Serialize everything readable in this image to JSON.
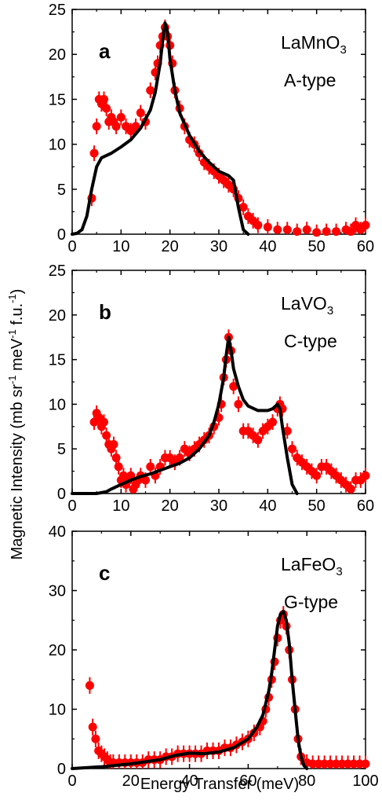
{
  "page": {
    "ylabel": "Magnetic Intensity (mb sr",
    "ylabel_sup1": "-1",
    "ylabel_mid": " meV",
    "ylabel_sup2": "-1",
    "ylabel_end": " f.u.",
    "ylabel_sup3": "-1",
    "ylabel_close": ")",
    "xlabel": "Energy Transfer (meV)"
  },
  "chart_data": [
    {
      "type": "scatter",
      "panel_label": "a",
      "compound_main": "LaMnO",
      "compound_sub": "3",
      "order_type": "A-type",
      "xlim": [
        0,
        60
      ],
      "ylim": [
        0,
        25
      ],
      "xticks": [
        0,
        10,
        20,
        30,
        40,
        50,
        60
      ],
      "yticks": [
        0,
        5,
        10,
        15,
        20,
        25
      ],
      "colors": {
        "points": "#ff0000",
        "fit": "#000000"
      },
      "series": [
        {
          "kind": "points",
          "x": [
            4,
            4.5,
            5,
            5.5,
            6,
            6.5,
            7,
            7.5,
            8,
            8.5,
            9,
            10,
            11,
            12,
            13,
            14,
            15,
            16,
            17,
            17.5,
            18,
            18.5,
            19,
            19.5,
            20,
            20.5,
            21,
            22,
            23,
            24,
            25,
            26,
            27,
            28,
            29,
            30,
            31,
            32,
            33,
            34,
            35,
            36,
            37,
            38,
            40,
            42,
            44,
            46,
            48,
            50,
            52,
            54,
            56,
            57,
            58,
            59,
            60
          ],
          "y": [
            4,
            9,
            12,
            15,
            14.5,
            15,
            14,
            12.5,
            13,
            12.5,
            12,
            13,
            12,
            11.5,
            12,
            13.5,
            12.5,
            16,
            18,
            19,
            21,
            22,
            23,
            22,
            21,
            19,
            16,
            14,
            12,
            10.5,
            10,
            9,
            8,
            7.5,
            7,
            6.5,
            6,
            5.5,
            5,
            4,
            3,
            2,
            1.5,
            1,
            0.8,
            0.5,
            0.5,
            0.3,
            0.5,
            0.2,
            0.3,
            0.3,
            0.5,
            0.3,
            1,
            0.5,
            1
          ]
        },
        {
          "kind": "fit",
          "x": [
            0,
            1,
            2,
            3,
            4,
            5,
            6,
            8,
            10,
            12,
            14,
            16,
            17,
            18,
            18.5,
            19,
            19.5,
            20,
            21,
            22,
            24,
            26,
            28,
            30,
            32,
            33,
            34,
            35,
            36
          ],
          "y": [
            0,
            0.1,
            0.5,
            2,
            5,
            7.5,
            8.5,
            9,
            9.7,
            10.5,
            11.8,
            13.8,
            15.8,
            19,
            21.5,
            23.5,
            22.5,
            19.5,
            16,
            13.5,
            11,
            9.2,
            8,
            7,
            6.5,
            6,
            3,
            0.5,
            0
          ]
        }
      ]
    },
    {
      "type": "scatter",
      "panel_label": "b",
      "compound_main": "LaVO",
      "compound_sub": "3",
      "order_type": "C-type",
      "xlim": [
        0,
        60
      ],
      "ylim": [
        0,
        25
      ],
      "xticks": [
        0,
        10,
        20,
        30,
        40,
        50,
        60
      ],
      "yticks": [
        0,
        5,
        10,
        15,
        20,
        25
      ],
      "colors": {
        "points": "#ff0000",
        "fit": "#000000"
      },
      "series": [
        {
          "kind": "points",
          "x": [
            4.5,
            5,
            5.5,
            6,
            6.5,
            7,
            7.5,
            8,
            8.5,
            9,
            9.5,
            10,
            10.5,
            11,
            11.5,
            12,
            12.5,
            13,
            13.5,
            14,
            15,
            16,
            17,
            18,
            19,
            20,
            21,
            22,
            23,
            24,
            25,
            26,
            27,
            28,
            29,
            30,
            30.5,
            31,
            31.5,
            32,
            32.5,
            33,
            34,
            35,
            36,
            37,
            38,
            39,
            40,
            41,
            42,
            42.5,
            43,
            44,
            45,
            46,
            47,
            48,
            49,
            50,
            51,
            52,
            53,
            54,
            55,
            56,
            57,
            58,
            59,
            60
          ],
          "y": [
            8,
            9,
            8.5,
            7.5,
            8,
            6.5,
            5.5,
            5,
            5.5,
            4,
            3,
            1.5,
            2,
            1,
            1.5,
            2,
            0.5,
            1,
            1.5,
            2,
            1.5,
            3,
            2,
            3,
            4,
            4,
            3.5,
            4,
            5,
            4.5,
            5,
            5.5,
            6,
            6.5,
            7.5,
            8.5,
            10,
            13,
            15,
            17.5,
            16,
            12,
            10,
            7,
            7,
            6.5,
            6,
            7,
            7.5,
            8,
            9.5,
            10,
            9.5,
            7,
            5,
            4,
            3.5,
            3,
            2.5,
            2,
            3,
            3,
            2.5,
            2,
            1.5,
            1,
            0.5,
            1.5,
            1.5,
            2
          ]
        },
        {
          "kind": "fit",
          "x": [
            0,
            5,
            7,
            8,
            10,
            12,
            14,
            16,
            18,
            20,
            22,
            24,
            26,
            28,
            29,
            30,
            31,
            31.5,
            32,
            32.5,
            33,
            34,
            35,
            36,
            38,
            40,
            41,
            42,
            42.5,
            43,
            44,
            45,
            46
          ],
          "y": [
            0,
            0,
            0.2,
            0.5,
            1,
            1.5,
            1.9,
            2.2,
            2.6,
            3,
            3.4,
            4,
            5,
            6.5,
            8,
            10,
            13,
            15.5,
            17.5,
            16,
            14,
            12,
            10.5,
            9.8,
            9.3,
            9.3,
            9.5,
            10,
            9.5,
            7.5,
            4,
            1,
            0
          ]
        }
      ]
    },
    {
      "type": "scatter",
      "panel_label": "c",
      "compound_main": "LaFeO",
      "compound_sub": "3",
      "order_type": "G-type",
      "xlim": [
        0,
        100
      ],
      "ylim": [
        0,
        40
      ],
      "xticks": [
        0,
        20,
        40,
        60,
        80,
        100
      ],
      "yticks": [
        0,
        10,
        20,
        30,
        40
      ],
      "colors": {
        "points": "#ff0000",
        "fit": "#000000"
      },
      "series": [
        {
          "kind": "points",
          "x": [
            6,
            7,
            8,
            9,
            10,
            11,
            12,
            13,
            14,
            16,
            18,
            20,
            22,
            24,
            26,
            28,
            30,
            32,
            34,
            36,
            38,
            40,
            42,
            44,
            46,
            48,
            50,
            52,
            54,
            56,
            58,
            60,
            62,
            64,
            65,
            66,
            67,
            68,
            69,
            70,
            71,
            72,
            73,
            74,
            75,
            76,
            77,
            78,
            80,
            82,
            84,
            86,
            88,
            90,
            92,
            94,
            96,
            98,
            100
          ],
          "y": [
            14,
            7,
            5,
            3,
            2.5,
            2,
            1.5,
            1,
            1,
            1,
            1,
            1,
            1,
            1,
            1.5,
            1.5,
            1.5,
            2,
            2,
            2.5,
            2.5,
            2.5,
            2.5,
            2.5,
            3,
            3,
            3,
            3.5,
            3.5,
            4,
            4.5,
            5,
            6,
            7,
            8,
            10,
            12,
            15,
            18,
            22,
            25,
            26,
            24,
            20,
            15,
            10,
            5,
            2,
            1,
            0.8,
            0.8,
            0.8,
            0.8,
            0.8,
            0.8,
            0.8,
            0.8,
            0.8,
            0.8
          ]
        },
        {
          "kind": "fit",
          "x": [
            0,
            10,
            20,
            30,
            35,
            40,
            45,
            50,
            55,
            60,
            63,
            65,
            67,
            68,
            69,
            70,
            71,
            72,
            73,
            74,
            75,
            76,
            77,
            78,
            79,
            80
          ],
          "y": [
            0,
            0.3,
            0.8,
            1.5,
            2.2,
            2.6,
            2.5,
            2.8,
            3.5,
            5,
            7,
            9,
            13,
            16,
            20,
            24,
            26,
            26.5,
            25,
            21,
            15,
            10,
            5,
            2,
            0.5,
            0
          ]
        }
      ]
    }
  ]
}
